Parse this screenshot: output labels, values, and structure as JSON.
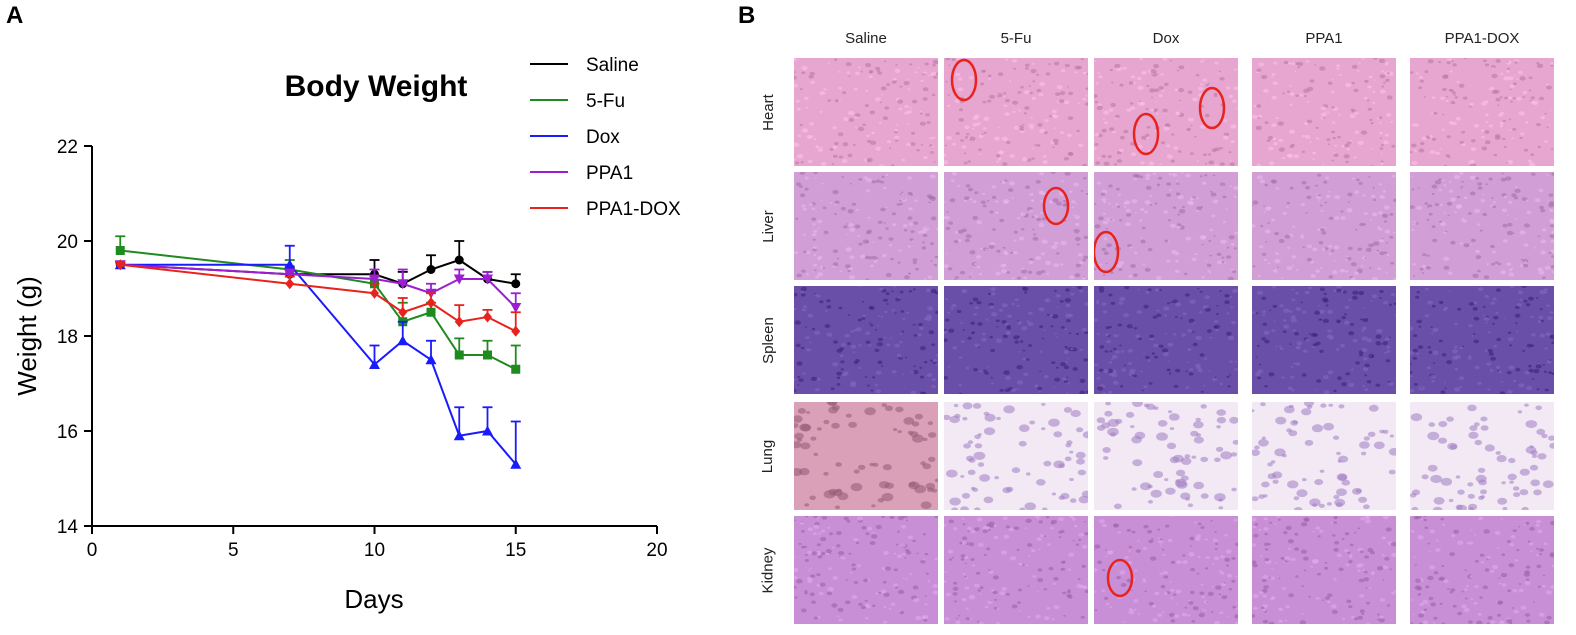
{
  "panels": {
    "a_letter": "A",
    "b_letter": "B"
  },
  "chart_data": {
    "type": "line",
    "title": "Body Weight",
    "xlabel": "Days",
    "ylabel": "Weight (g)",
    "xlim": [
      0,
      20
    ],
    "ylim": [
      14,
      22
    ],
    "xticks": [
      0,
      5,
      10,
      15,
      20
    ],
    "yticks": [
      14,
      16,
      18,
      20,
      22
    ],
    "legend_position": "top-right",
    "series": [
      {
        "name": "Saline",
        "color": "#000000",
        "marker": "circle",
        "x": [
          1,
          7,
          10,
          11,
          12,
          13,
          14,
          15
        ],
        "y": [
          19.5,
          19.3,
          19.3,
          19.1,
          19.4,
          19.6,
          19.2,
          19.1
        ],
        "err": [
          0.05,
          0.15,
          0.3,
          0.25,
          0.3,
          0.4,
          0.15,
          0.2
        ]
      },
      {
        "name": "5-Fu",
        "color": "#1f8a1f",
        "marker": "square",
        "x": [
          1,
          7,
          10,
          11,
          12,
          13,
          14,
          15
        ],
        "y": [
          19.8,
          19.4,
          19.1,
          18.3,
          18.5,
          17.6,
          17.6,
          17.3
        ],
        "err": [
          0.3,
          0.2,
          0.15,
          0.4,
          0.2,
          0.35,
          0.3,
          0.5
        ]
      },
      {
        "name": "Dox",
        "color": "#1a1aff",
        "marker": "triangle",
        "x": [
          1,
          7,
          10,
          11,
          12,
          13,
          14,
          15
        ],
        "y": [
          19.5,
          19.5,
          17.4,
          17.9,
          17.5,
          15.9,
          16.0,
          15.3
        ],
        "err": [
          0.05,
          0.4,
          0.4,
          0.4,
          0.4,
          0.6,
          0.5,
          0.9
        ]
      },
      {
        "name": "PPA1",
        "color": "#9b1fd1",
        "marker": "triangle-down",
        "x": [
          1,
          7,
          10,
          11,
          12,
          13,
          14,
          15
        ],
        "y": [
          19.5,
          19.3,
          19.2,
          19.1,
          18.9,
          19.2,
          19.2,
          18.6
        ],
        "err": [
          0.05,
          0.1,
          0.2,
          0.3,
          0.2,
          0.2,
          0.15,
          0.3
        ]
      },
      {
        "name": "PPA1-DOX",
        "color": "#e8231d",
        "marker": "diamond",
        "x": [
          1,
          7,
          10,
          11,
          12,
          13,
          14,
          15
        ],
        "y": [
          19.5,
          19.1,
          18.9,
          18.5,
          18.7,
          18.3,
          18.4,
          18.1
        ],
        "err": [
          0.05,
          0.15,
          0.2,
          0.3,
          0.2,
          0.35,
          0.15,
          0.4
        ]
      }
    ]
  },
  "histology": {
    "columns": [
      "Saline",
      "5-Fu",
      "Dox",
      "PPA1",
      "PPA1-DOX"
    ],
    "rows": [
      "Heart",
      "Liver",
      "Spleen",
      "Lung",
      "Kidney"
    ],
    "tile_colors": {
      "Heart": "#e6a6cf",
      "Liver": "#d19fd6",
      "Spleen": "#6a4fa8",
      "Lung": "#f2e9f4",
      "Kidney": "#c98fd6"
    },
    "lung_saline_color": "#d9a0b8",
    "lesion_circle_color": "#e8231d",
    "lesions": [
      {
        "row": "Heart",
        "column": "5-Fu"
      },
      {
        "row": "Heart",
        "column": "Dox"
      },
      {
        "row": "Heart",
        "column": "Dox"
      },
      {
        "row": "Liver",
        "column": "5-Fu"
      },
      {
        "row": "Liver",
        "column": "Dox"
      },
      {
        "row": "Kidney",
        "column": "Dox"
      }
    ]
  }
}
